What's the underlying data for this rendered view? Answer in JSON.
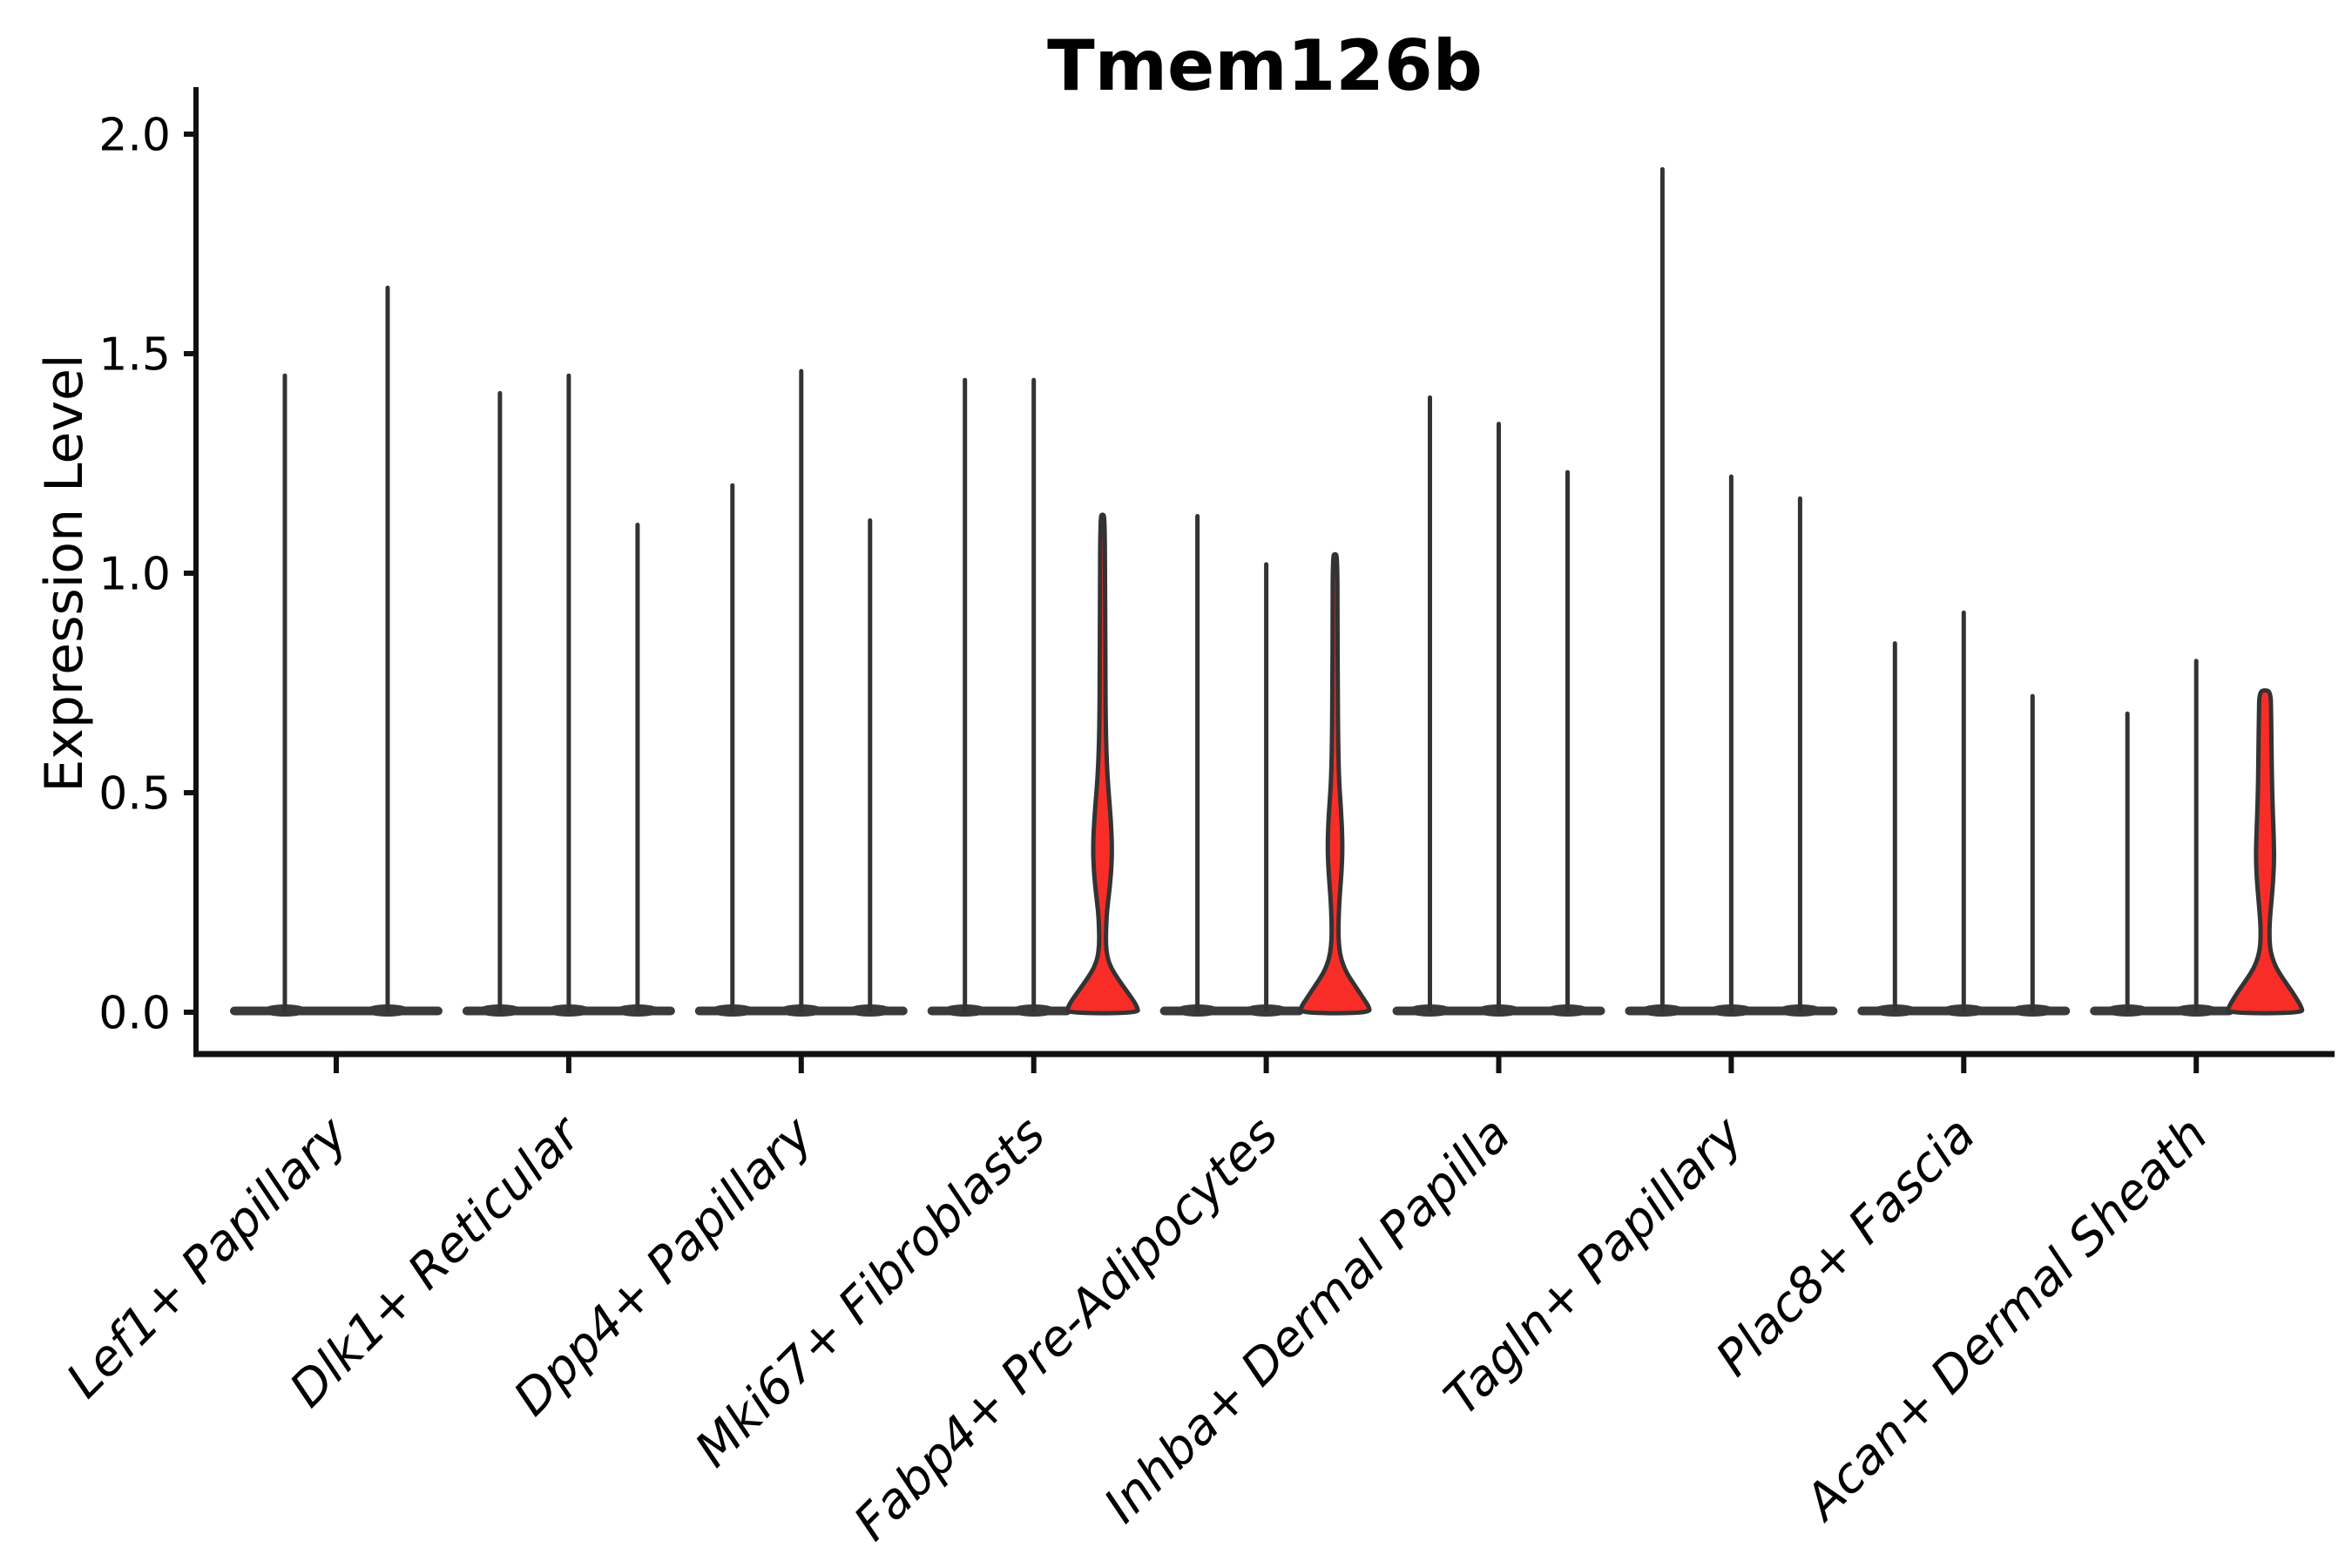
{
  "title": "Tmem126b",
  "colors": {
    "violin_fill_red": "#F92D27",
    "violin_line": "#333333",
    "base_bar": "#3A3A3A",
    "axis": "#111111",
    "text": "#000000"
  },
  "chart_data": {
    "type": "violin",
    "title": "Tmem126b",
    "xlabel": "",
    "ylabel": "Expression Level",
    "ylim": [
      -0.06,
      2.05
    ],
    "yticks": [
      0.0,
      0.5,
      1.0,
      1.5,
      2.0
    ],
    "ytick_labels": [
      "0.0",
      "0.5",
      "1.0",
      "1.5",
      "2.0"
    ],
    "grid": false,
    "legend": "none",
    "categories": [
      "Lef1+ Papillary",
      "Dlk1+ Reticular",
      "Dpp4+ Papillary",
      "Mki67+ Fibroblasts",
      "Fabp4+ Pre-Adipocytes",
      "Inhba+ Dermal Papilla",
      "Tagln+ Papillary",
      "Plac8+ Fascia",
      "Acan+ Dermal Sheath"
    ],
    "groups": [
      {
        "category": "Lef1+ Papillary",
        "violins": [
          {
            "max": 1.45,
            "filled": false
          },
          {
            "max": 1.65,
            "filled": false
          }
        ]
      },
      {
        "category": "Dlk1+ Reticular",
        "violins": [
          {
            "max": 1.41,
            "filled": false
          },
          {
            "max": 1.45,
            "filled": false
          },
          {
            "max": 1.11,
            "filled": false
          }
        ]
      },
      {
        "category": "Dpp4+ Papillary",
        "violins": [
          {
            "max": 1.2,
            "filled": false
          },
          {
            "max": 1.46,
            "filled": false
          },
          {
            "max": 1.12,
            "filled": false
          }
        ]
      },
      {
        "category": "Mki67+ Fibroblasts",
        "violins": [
          {
            "max": 1.44,
            "filled": false
          },
          {
            "max": 1.44,
            "filled": false
          },
          {
            "max": 1.13,
            "filled": true,
            "profile": [
              [
                1.13,
                2.5
              ],
              [
                0.95,
                3
              ],
              [
                0.8,
                3.2
              ],
              [
                0.65,
                3.6
              ],
              [
                0.56,
                5
              ],
              [
                0.5,
                7
              ],
              [
                0.44,
                9.5
              ],
              [
                0.375,
                11
              ],
              [
                0.32,
                10
              ],
              [
                0.27,
                7.5
              ],
              [
                0.23,
                5
              ],
              [
                0.19,
                4
              ],
              [
                0.155,
                3.8
              ],
              [
                0.125,
                5.5
              ],
              [
                0.1,
                10
              ],
              [
                0.075,
                18
              ],
              [
                0.05,
                27
              ],
              [
                0.025,
                36
              ],
              [
                0.01,
                40
              ],
              [
                0.0,
                41
              ]
            ]
          }
        ]
      },
      {
        "category": "Fabp4+ Pre-Adipocytes",
        "violins": [
          {
            "max": 1.13,
            "filled": false
          },
          {
            "max": 1.02,
            "filled": false
          },
          {
            "max": 1.04,
            "filled": true,
            "profile": [
              [
                1.04,
                2.5
              ],
              [
                0.9,
                2.8
              ],
              [
                0.75,
                3.1
              ],
              [
                0.62,
                3.5
              ],
              [
                0.53,
                4.5
              ],
              [
                0.47,
                6.5
              ],
              [
                0.42,
                8
              ],
              [
                0.37,
                8.5
              ],
              [
                0.32,
                7.5
              ],
              [
                0.27,
                5.5
              ],
              [
                0.22,
                4.2
              ],
              [
                0.18,
                3.8
              ],
              [
                0.15,
                4.5
              ],
              [
                0.12,
                7
              ],
              [
                0.09,
                13
              ],
              [
                0.06,
                23
              ],
              [
                0.03,
                33
              ],
              [
                0.012,
                39
              ],
              [
                0.0,
                40
              ]
            ]
          }
        ]
      },
      {
        "category": "Inhba+ Dermal Papilla",
        "violins": [
          {
            "max": 1.4,
            "filled": false
          },
          {
            "max": 1.34,
            "filled": false
          },
          {
            "max": 1.23,
            "filled": false
          }
        ]
      },
      {
        "category": "Tagln+ Papillary",
        "violins": [
          {
            "max": 1.92,
            "filled": false
          },
          {
            "max": 1.22,
            "filled": false
          },
          {
            "max": 1.17,
            "filled": false
          }
        ]
      },
      {
        "category": "Plac8+ Fascia",
        "violins": [
          {
            "max": 0.84,
            "filled": false
          },
          {
            "max": 0.91,
            "filled": false
          },
          {
            "max": 0.72,
            "filled": false
          }
        ]
      },
      {
        "category": "Acan+ Dermal Sheath",
        "violins": [
          {
            "max": 0.68,
            "filled": false
          },
          {
            "max": 0.8,
            "filled": false
          },
          {
            "max": 0.73,
            "filled": true,
            "profile": [
              [
                0.73,
                6.5
              ],
              [
                0.68,
                7
              ],
              [
                0.6,
                7.5
              ],
              [
                0.52,
                8
              ],
              [
                0.45,
                9
              ],
              [
                0.4,
                10
              ],
              [
                0.345,
                10.5
              ],
              [
                0.29,
                9
              ],
              [
                0.245,
                7
              ],
              [
                0.21,
                5.5
              ],
              [
                0.18,
                5
              ],
              [
                0.15,
                5.5
              ],
              [
                0.125,
                8
              ],
              [
                0.1,
                13
              ],
              [
                0.075,
                21
              ],
              [
                0.05,
                30
              ],
              [
                0.025,
                38
              ],
              [
                0.01,
                42
              ],
              [
                0.0,
                43
              ]
            ]
          }
        ]
      }
    ]
  }
}
